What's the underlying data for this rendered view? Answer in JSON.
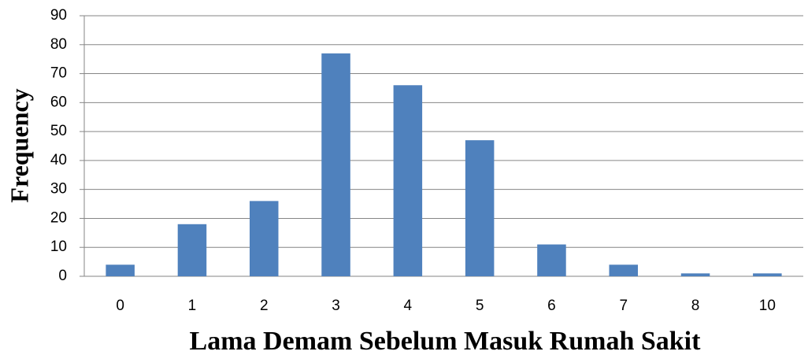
{
  "chart_data": {
    "type": "bar",
    "xlabel": "Lama Demam Sebelum Masuk Rumah Sakit",
    "ylabel": "Frequency",
    "categories": [
      "0",
      "1",
      "2",
      "3",
      "4",
      "5",
      "6",
      "7",
      "8",
      "10"
    ],
    "values": [
      4,
      18,
      26,
      77,
      66,
      47,
      11,
      4,
      1,
      1
    ],
    "color": "#4f81bd",
    "ylim": [
      0,
      90
    ],
    "yticks": [
      0,
      10,
      20,
      30,
      40,
      50,
      60,
      70,
      80,
      90
    ],
    "grid": true
  }
}
